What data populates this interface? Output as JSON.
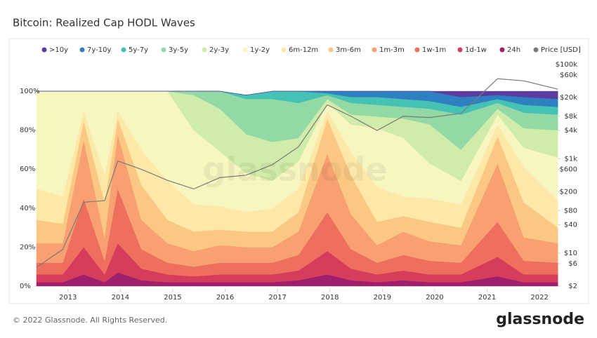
{
  "chart_data": {
    "type": "stacked-area",
    "title": "Bitcoin: Realized Cap HODL Waves",
    "watermark": "glassnode",
    "x": [
      2012.4,
      2012.9,
      2013.3,
      2013.7,
      2013.95,
      2014.4,
      2014.9,
      2015.4,
      2015.9,
      2016.4,
      2016.9,
      2017.4,
      2017.95,
      2018.4,
      2018.9,
      2019.4,
      2019.9,
      2020.5,
      2021.2,
      2021.7,
      2022.35
    ],
    "xlim": [
      2012.4,
      2022.36
    ],
    "xticks": [
      2013,
      2014,
      2015,
      2016,
      2017,
      2018,
      2019,
      2020,
      2021,
      2022
    ],
    "ylim": [
      0,
      113.7
    ],
    "yticks": [
      {
        "value": 0,
        "label": "0%"
      },
      {
        "value": 20,
        "label": "20%"
      },
      {
        "value": 40,
        "label": "40%"
      },
      {
        "value": 60,
        "label": "60%"
      },
      {
        "value": 80,
        "label": "80%"
      },
      {
        "value": 100,
        "label": "100%"
      }
    ],
    "y2lim": [
      2,
      100000
    ],
    "y2scale": "log",
    "y2ticks": [
      {
        "value": 2,
        "label": "$2"
      },
      {
        "value": 6,
        "label": "$6"
      },
      {
        "value": 10,
        "label": "$10"
      },
      {
        "value": 40,
        "label": "$40"
      },
      {
        "value": 80,
        "label": "$80"
      },
      {
        "value": 200,
        "label": "$200"
      },
      {
        "value": 600,
        "label": "$600"
      },
      {
        "value": 1000,
        "label": "$1k"
      },
      {
        "value": 4000,
        "label": "$4k"
      },
      {
        "value": 8000,
        "label": "$8k"
      },
      {
        "value": 20000,
        "label": "$20k"
      },
      {
        "value": 60000,
        "label": "$60k"
      },
      {
        "value": 100000,
        "label": "$100k"
      }
    ],
    "series": [
      {
        "name": ">10y",
        "color": "#5a3d9e",
        "values": [
          0,
          0,
          0,
          0,
          0,
          0,
          0,
          0,
          0,
          0,
          0,
          0,
          0,
          0,
          0,
          0,
          0,
          3,
          2,
          3,
          4
        ]
      },
      {
        "name": "7y-10y",
        "color": "#2f80c0",
        "values": [
          0,
          0,
          0,
          0,
          0,
          0,
          0,
          0,
          0,
          0,
          0,
          0,
          1,
          3,
          3,
          4,
          5,
          5,
          2,
          4,
          4
        ]
      },
      {
        "name": "5y-7y",
        "color": "#45c2b4",
        "values": [
          0,
          0,
          0,
          0,
          0,
          0,
          0,
          0,
          0,
          2,
          4,
          6,
          1,
          3,
          4,
          4,
          4,
          4,
          2,
          4,
          4
        ]
      },
      {
        "name": "3y-5y",
        "color": "#93d9a6",
        "values": [
          0,
          0,
          0,
          0,
          0,
          0,
          0,
          2,
          9,
          18,
          22,
          18,
          2,
          6,
          6,
          6,
          8,
          18,
          3,
          8,
          8
        ]
      },
      {
        "name": "2y-3y",
        "color": "#d0ecaa",
        "values": [
          0,
          0,
          0,
          0,
          0,
          0,
          0,
          18,
          22,
          20,
          20,
          12,
          2,
          5,
          6,
          10,
          20,
          16,
          3,
          10,
          14
        ]
      },
      {
        "name": "1y-2y",
        "color": "#f7f6c0",
        "values": [
          50,
          54,
          10,
          43,
          10,
          30,
          46,
          38,
          28,
          20,
          14,
          14,
          4,
          14,
          30,
          30,
          18,
          12,
          5,
          10,
          22
        ]
      },
      {
        "name": "6m-12m",
        "color": "#fde8a8",
        "values": [
          16,
          14,
          5,
          14,
          4,
          18,
          20,
          14,
          12,
          10,
          12,
          12,
          4,
          12,
          18,
          10,
          12,
          12,
          6,
          18,
          14
        ]
      },
      {
        "name": "3m-6m",
        "color": "#fbc883",
        "values": [
          12,
          10,
          10,
          18,
          8,
          18,
          12,
          10,
          8,
          8,
          8,
          10,
          18,
          20,
          12,
          8,
          10,
          9,
          14,
          18,
          8
        ]
      },
      {
        "name": "1m-3m",
        "color": "#f8a072",
        "values": [
          10,
          10,
          30,
          12,
          28,
          15,
          10,
          8,
          9,
          8,
          8,
          12,
          30,
          18,
          9,
          12,
          10,
          9,
          30,
          12,
          10
        ]
      },
      {
        "name": "1w-1m",
        "color": "#ef6f5e",
        "values": [
          6,
          6,
          25,
          7,
          28,
          10,
          6,
          5,
          6,
          6,
          6,
          8,
          20,
          10,
          6,
          8,
          7,
          6,
          18,
          7,
          6
        ]
      },
      {
        "name": "1d-1w",
        "color": "#d63d5c",
        "values": [
          4,
          4,
          14,
          4,
          15,
          6,
          4,
          3,
          4,
          4,
          4,
          5,
          12,
          6,
          4,
          5,
          4,
          4,
          10,
          4,
          4
        ]
      },
      {
        "name": "24h",
        "color": "#9e1f6c",
        "values": [
          2,
          2,
          6,
          2,
          7,
          3,
          2,
          2,
          2,
          2,
          2,
          3,
          6,
          3,
          2,
          3,
          2,
          2,
          5,
          2,
          2
        ]
      },
      {
        "name": "Price [USD]",
        "color": "#7a7a7a",
        "axis": "y2",
        "values": [
          5,
          12,
          120,
          130,
          900,
          600,
          350,
          230,
          400,
          450,
          750,
          1800,
          14000,
          8000,
          4000,
          8000,
          7500,
          9200,
          50000,
          45000,
          30000
        ]
      }
    ]
  },
  "footer": {
    "copyright": "© 2022 Glassnode. All Rights Reserved.",
    "logo": "glassnode"
  }
}
